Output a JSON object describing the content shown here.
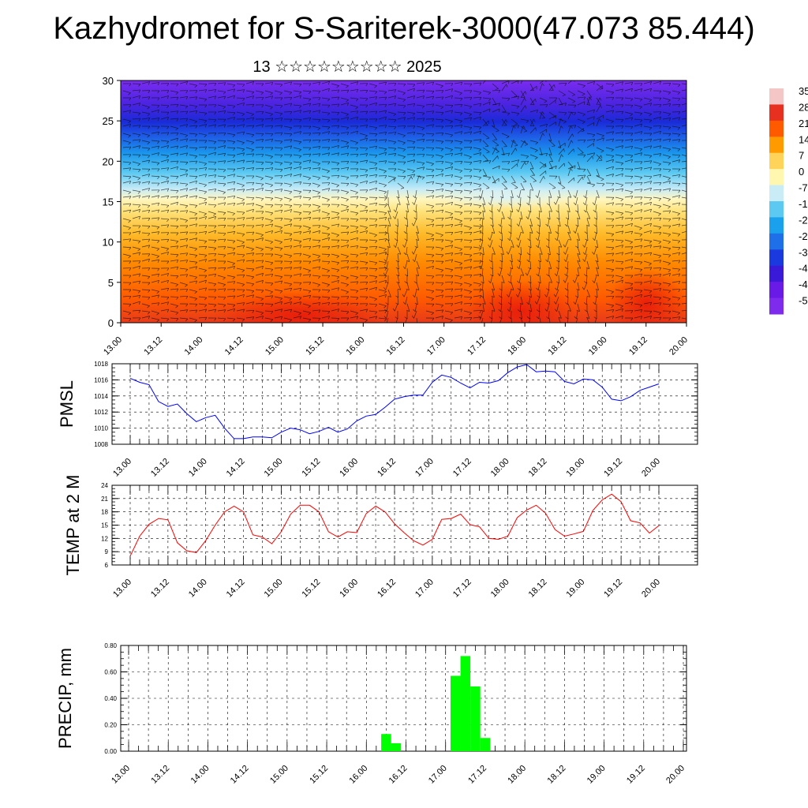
{
  "title": "Kazhydromet for S-Sariterek-3000(47.073 85.444)",
  "subtitle": "13 ☆☆☆☆☆☆☆☆☆ 2025",
  "time_ticks": [
    "13.00",
    "13.12",
    "14.00",
    "14.12",
    "15.00",
    "15.12",
    "16.00",
    "16.12",
    "17.00",
    "17.12",
    "18.00",
    "18.12",
    "19.00",
    "19.12",
    "20.00"
  ],
  "chart_data": [
    {
      "type": "heatmap",
      "name": "cross-section",
      "xlabel": "",
      "ylabel": "",
      "ylim": [
        0,
        30
      ],
      "yticks": [
        0,
        5,
        10,
        15,
        20,
        25,
        30
      ],
      "colorbar_labels": [
        "35",
        "28",
        "21",
        "14",
        "7",
        "0",
        "-7",
        "-1",
        "-2",
        "-2",
        "-3",
        "-4",
        "-4",
        "-5"
      ],
      "colorbar_colors": [
        "#f5c6c6",
        "#e83020",
        "#ff5a00",
        "#ff9a00",
        "#ffd35a",
        "#fff6b0",
        "#c9ecf7",
        "#5bc9f2",
        "#1aa0ec",
        "#1e6fe8",
        "#1a3ae0",
        "#3a1ad8",
        "#6a1ae6",
        "#7f2bee"
      ]
    },
    {
      "type": "line",
      "name": "pmsl",
      "ylabel": "PMSL",
      "ylim": [
        1008,
        1018
      ],
      "yticks": [
        "1008",
        "1010",
        "1012",
        "1014",
        "1016",
        "1018"
      ],
      "color": "#0000ff",
      "values": [
        1016.2,
        1015.7,
        1015.4,
        1013.3,
        1012.7,
        1013.0,
        1011.8,
        1010.8,
        1011.3,
        1011.6,
        1010.0,
        1008.7,
        1008.7,
        1008.9,
        1008.9,
        1008.8,
        1009.5,
        1010.0,
        1009.8,
        1009.3,
        1009.6,
        1010.1,
        1009.5,
        1009.9,
        1010.9,
        1011.5,
        1011.7,
        1012.6,
        1013.6,
        1013.9,
        1014.1,
        1014.1,
        1015.7,
        1016.6,
        1016.3,
        1015.6,
        1015.0,
        1015.7,
        1015.6,
        1015.9,
        1016.9,
        1017.6,
        1017.9,
        1017.0,
        1017.1,
        1017.0,
        1015.8,
        1015.5,
        1016.1,
        1016.0,
        1015.1,
        1013.6,
        1013.4,
        1013.9,
        1014.7,
        1015.1,
        1015.5
      ]
    },
    {
      "type": "line",
      "name": "temp-2m",
      "ylabel": "TEMP at 2 M",
      "ylim": [
        6,
        24
      ],
      "yticks": [
        "6",
        "9",
        "12",
        "15",
        "18",
        "21",
        "24"
      ],
      "color": "#ff0000",
      "values": [
        8.0,
        12.5,
        15.2,
        16.5,
        16.2,
        11.0,
        9.2,
        8.8,
        11.5,
        15.0,
        18.0,
        19.3,
        18.0,
        12.8,
        12.3,
        10.8,
        13.5,
        17.5,
        19.5,
        19.5,
        18.0,
        13.5,
        12.3,
        13.5,
        13.3,
        17.6,
        19.3,
        18.0,
        15.3,
        13.3,
        11.5,
        10.5,
        11.8,
        16.3,
        16.5,
        17.5,
        15.1,
        14.6,
        12.0,
        11.8,
        12.5,
        16.7,
        18.4,
        19.5,
        17.7,
        14.0,
        12.5,
        13.0,
        13.6,
        18.3,
        20.7,
        22.0,
        20.3,
        16.0,
        15.5,
        13.2,
        14.9
      ]
    },
    {
      "type": "bar",
      "name": "precip",
      "ylabel": "PRECIP, mm",
      "ylim": [
        0,
        0.8
      ],
      "yticks": [
        "0.00",
        "0.20",
        "0.40",
        "0.60",
        "0.80"
      ],
      "color": "#00ff00",
      "bars": [
        {
          "t": 16.25,
          "value": 0.13
        },
        {
          "t": 16.375,
          "value": 0.06
        },
        {
          "t": 17.125,
          "value": 0.57
        },
        {
          "t": 17.25,
          "value": 0.72
        },
        {
          "t": 17.375,
          "value": 0.49
        },
        {
          "t": 17.5,
          "value": 0.1
        }
      ]
    }
  ]
}
